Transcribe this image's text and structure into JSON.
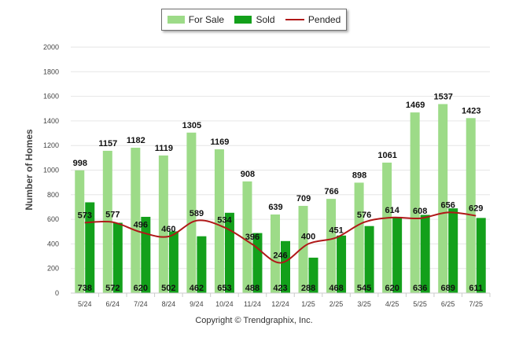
{
  "legend": {
    "for_sale": "For Sale",
    "sold": "Sold",
    "pended": "Pended"
  },
  "copyright": "Copyright © Trendgraphix, Inc.",
  "colors": {
    "for_sale": "#9ddb88",
    "sold": "#13a01b",
    "pended": "#b01818",
    "grid": "#e6e6e6"
  },
  "chart_data": {
    "type": "bar",
    "ylabel": "Number of Homes",
    "xlabel": "",
    "ylim": [
      0,
      2000
    ],
    "yticks": [
      0,
      200,
      400,
      600,
      800,
      1000,
      1200,
      1400,
      1600,
      1800,
      2000
    ],
    "categories": [
      "5/24",
      "6/24",
      "7/24",
      "8/24",
      "9/24",
      "10/24",
      "11/24",
      "12/24",
      "1/25",
      "2/25",
      "3/25",
      "4/25",
      "5/25",
      "6/25",
      "7/25"
    ],
    "series": [
      {
        "name": "For Sale",
        "type": "bar",
        "values": [
          998,
          1157,
          1182,
          1119,
          1305,
          1169,
          908,
          639,
          709,
          766,
          898,
          1061,
          1469,
          1537,
          1423
        ]
      },
      {
        "name": "Sold",
        "type": "bar",
        "values": [
          738,
          572,
          620,
          502,
          462,
          653,
          488,
          423,
          288,
          468,
          545,
          620,
          636,
          689,
          611
        ]
      },
      {
        "name": "Pended",
        "type": "line",
        "values": [
          573,
          577,
          496,
          460,
          589,
          534,
          396,
          246,
          400,
          451,
          576,
          614,
          608,
          656,
          629
        ]
      }
    ],
    "legend_position": "top-center",
    "grid": true
  }
}
